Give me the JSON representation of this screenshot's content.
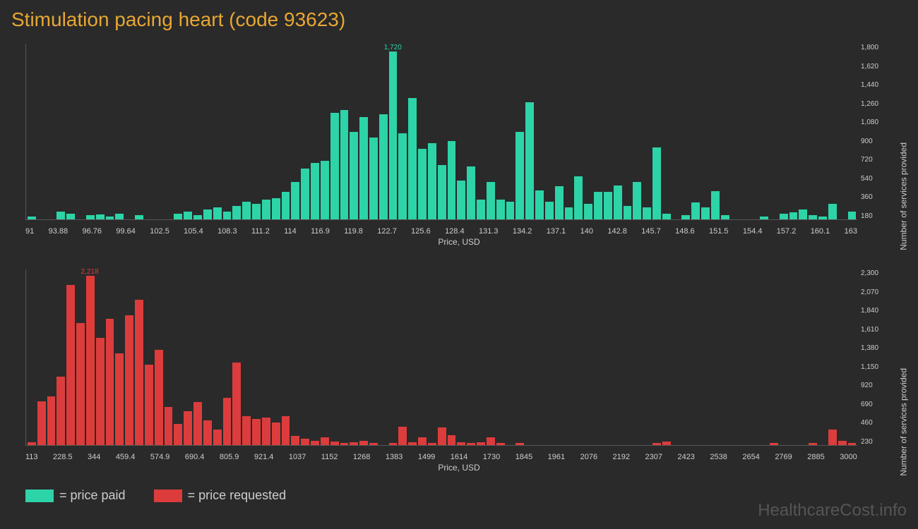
{
  "title": "Stimulation pacing heart (code 93623)",
  "colors": {
    "background": "#2a2a2a",
    "title": "#e8a732",
    "text": "#cccccc",
    "axis": "#555555",
    "series1": "#2dd4a7",
    "series2": "#dc3c3c",
    "watermark": "#555555"
  },
  "chart1": {
    "type": "histogram",
    "peak_value": "1,720",
    "peak_index": 37,
    "x_label": "Price, USD",
    "y_label": "Number of services provided",
    "x_ticks": [
      "91",
      "93.88",
      "96.76",
      "99.64",
      "102.5",
      "105.4",
      "108.3",
      "111.2",
      "114",
      "116.9",
      "119.8",
      "122.7",
      "125.6",
      "128.4",
      "131.3",
      "134.2",
      "137.1",
      "140",
      "142.8",
      "145.7",
      "148.6",
      "151.5",
      "154.4",
      "157.2",
      "160.1",
      "163"
    ],
    "y_ticks": [
      "180",
      "360",
      "540",
      "720",
      "900",
      "1,080",
      "1,260",
      "1,440",
      "1,620",
      "1,800"
    ],
    "y_max": 1800,
    "values": [
      30,
      0,
      0,
      80,
      60,
      0,
      40,
      50,
      30,
      60,
      0,
      40,
      0,
      0,
      0,
      60,
      80,
      40,
      100,
      120,
      80,
      140,
      180,
      160,
      200,
      220,
      280,
      380,
      520,
      580,
      600,
      1090,
      1120,
      900,
      1050,
      840,
      1080,
      1720,
      880,
      1240,
      720,
      780,
      560,
      800,
      400,
      540,
      200,
      380,
      200,
      180,
      900,
      1200,
      300,
      180,
      340,
      120,
      440,
      160,
      280,
      280,
      350,
      140,
      380,
      120,
      740,
      60,
      0,
      40,
      170,
      120,
      290,
      40,
      0,
      0,
      0,
      30,
      0,
      60,
      70,
      100,
      40,
      30,
      160,
      0,
      80
    ]
  },
  "chart2": {
    "type": "histogram",
    "peak_value": "2,218",
    "peak_index": 6,
    "x_label": "Price, USD",
    "y_label": "Number of services provided",
    "x_ticks": [
      "113",
      "228.5",
      "344",
      "459.4",
      "574.9",
      "690.4",
      "805.9",
      "921.4",
      "1037",
      "1152",
      "1268",
      "1383",
      "1499",
      "1614",
      "1730",
      "1845",
      "1961",
      "2076",
      "2192",
      "2307",
      "2423",
      "2538",
      "2654",
      "2769",
      "2885",
      "3000"
    ],
    "y_ticks": [
      "230",
      "460",
      "690",
      "920",
      "1,150",
      "1,380",
      "1,610",
      "1,840",
      "2,070",
      "2,300"
    ],
    "y_max": 2300,
    "values": [
      40,
      570,
      640,
      900,
      2100,
      1600,
      2218,
      1400,
      1650,
      1200,
      1700,
      1900,
      1050,
      1250,
      500,
      280,
      440,
      560,
      320,
      200,
      620,
      1080,
      380,
      340,
      360,
      300,
      380,
      120,
      80,
      60,
      100,
      50,
      30,
      40,
      60,
      30,
      0,
      30,
      240,
      40,
      100,
      30,
      230,
      130,
      40,
      30,
      40,
      100,
      30,
      0,
      30,
      0,
      0,
      0,
      0,
      0,
      0,
      0,
      0,
      0,
      0,
      0,
      0,
      0,
      30,
      50,
      0,
      0,
      0,
      0,
      0,
      0,
      0,
      0,
      0,
      0,
      30,
      0,
      0,
      0,
      30,
      0,
      200,
      60,
      30
    ]
  },
  "legend": {
    "item1": "= price paid",
    "item2": "= price requested"
  },
  "watermark": "HealthcareCost.info"
}
